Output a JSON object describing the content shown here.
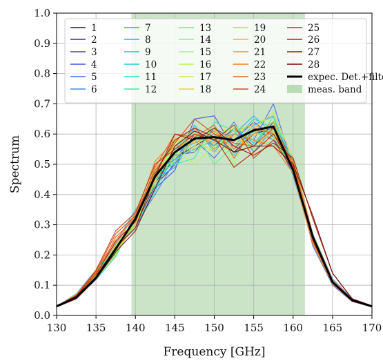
{
  "chart_data": {
    "type": "line",
    "xlabel": "Frequency [GHz]",
    "ylabel": "Spectrum",
    "xlim": [
      130,
      170
    ],
    "ylim": [
      0.0,
      1.0
    ],
    "xticks": [
      "130",
      "135",
      "140",
      "145",
      "150",
      "155",
      "160",
      "165",
      "170"
    ],
    "yticks": [
      "0.0",
      "0.1",
      "0.2",
      "0.3",
      "0.4",
      "0.5",
      "0.6",
      "0.7",
      "0.8",
      "0.9",
      "1.0"
    ],
    "grid": true,
    "legend_position": "top-left",
    "band": {
      "name": "meas. band",
      "x0": 139.5,
      "x1": 161.5,
      "color": "#b9dbb5"
    },
    "x": [
      130.0,
      132.5,
      135.0,
      137.5,
      140.0,
      142.5,
      145.0,
      147.5,
      150.0,
      152.5,
      155.0,
      157.5,
      160.0,
      162.5,
      165.0,
      167.5,
      170.0
    ],
    "series": [
      {
        "name": "1",
        "color": "#30123b",
        "values": [
          0.03,
          0.065,
          0.13,
          0.21,
          0.31,
          0.44,
          0.52,
          0.56,
          0.6,
          0.54,
          0.6,
          0.62,
          0.48,
          0.25,
          0.11,
          0.05,
          0.03
        ]
      },
      {
        "name": "2",
        "color": "#3c2b8a",
        "values": [
          0.032,
          0.06,
          0.125,
          0.225,
          0.3,
          0.43,
          0.5,
          0.6,
          0.56,
          0.62,
          0.56,
          0.64,
          0.5,
          0.26,
          0.115,
          0.052,
          0.03
        ]
      },
      {
        "name": "3",
        "color": "#4444b8",
        "values": [
          0.028,
          0.07,
          0.14,
          0.215,
          0.32,
          0.45,
          0.53,
          0.54,
          0.62,
          0.58,
          0.64,
          0.59,
          0.47,
          0.24,
          0.105,
          0.048,
          0.028
        ]
      },
      {
        "name": "4",
        "color": "#4455d8",
        "values": [
          0.03,
          0.058,
          0.12,
          0.22,
          0.29,
          0.42,
          0.48,
          0.65,
          0.66,
          0.55,
          0.62,
          0.58,
          0.52,
          0.27,
          0.12,
          0.055,
          0.032
        ]
      },
      {
        "name": "5",
        "color": "#466aef",
        "values": [
          0.031,
          0.066,
          0.135,
          0.205,
          0.33,
          0.46,
          0.55,
          0.58,
          0.52,
          0.6,
          0.58,
          0.7,
          0.49,
          0.23,
          0.1,
          0.046,
          0.029
        ]
      },
      {
        "name": "6",
        "color": "#4680f7",
        "values": [
          0.029,
          0.072,
          0.15,
          0.23,
          0.3,
          0.4,
          0.51,
          0.62,
          0.56,
          0.64,
          0.54,
          0.62,
          0.5,
          0.26,
          0.112,
          0.05,
          0.03
        ]
      },
      {
        "name": "7",
        "color": "#3b97fc",
        "values": [
          0.033,
          0.062,
          0.128,
          0.2,
          0.34,
          0.45,
          0.49,
          0.59,
          0.61,
          0.56,
          0.63,
          0.66,
          0.46,
          0.245,
          0.108,
          0.049,
          0.031
        ]
      },
      {
        "name": "8",
        "color": "#2bacf5",
        "values": [
          0.03,
          0.068,
          0.145,
          0.24,
          0.35,
          0.43,
          0.52,
          0.55,
          0.58,
          0.6,
          0.66,
          0.6,
          0.48,
          0.255,
          0.11,
          0.051,
          0.03
        ]
      },
      {
        "name": "9",
        "color": "#1ec0e7",
        "values": [
          0.028,
          0.064,
          0.132,
          0.215,
          0.31,
          0.47,
          0.5,
          0.63,
          0.54,
          0.62,
          0.57,
          0.64,
          0.51,
          0.265,
          0.118,
          0.053,
          0.029
        ]
      },
      {
        "name": "10",
        "color": "#1ad0d4",
        "values": [
          0.031,
          0.059,
          0.118,
          0.195,
          0.32,
          0.44,
          0.54,
          0.57,
          0.6,
          0.53,
          0.61,
          0.58,
          0.49,
          0.25,
          0.109,
          0.047,
          0.03
        ]
      },
      {
        "name": "11",
        "color": "#25dfbd",
        "values": [
          0.03,
          0.067,
          0.138,
          0.225,
          0.3,
          0.41,
          0.56,
          0.6,
          0.56,
          0.58,
          0.65,
          0.62,
          0.47,
          0.24,
          0.106,
          0.05,
          0.031
        ]
      },
      {
        "name": "12",
        "color": "#3ceca4",
        "values": [
          0.032,
          0.061,
          0.126,
          0.205,
          0.33,
          0.47,
          0.5,
          0.52,
          0.64,
          0.61,
          0.55,
          0.66,
          0.5,
          0.27,
          0.117,
          0.052,
          0.029
        ]
      },
      {
        "name": "13",
        "color": "#5cf58b",
        "values": [
          0.029,
          0.07,
          0.142,
          0.23,
          0.34,
          0.43,
          0.53,
          0.61,
          0.5,
          0.56,
          0.6,
          0.61,
          0.48,
          0.25,
          0.111,
          0.049,
          0.03
        ]
      },
      {
        "name": "14",
        "color": "#7ffb73",
        "values": [
          0.03,
          0.063,
          0.128,
          0.198,
          0.31,
          0.45,
          0.58,
          0.54,
          0.59,
          0.63,
          0.58,
          0.57,
          0.51,
          0.262,
          0.114,
          0.051,
          0.031
        ]
      },
      {
        "name": "15",
        "color": "#9efd5e",
        "values": [
          0.031,
          0.066,
          0.134,
          0.212,
          0.3,
          0.48,
          0.51,
          0.56,
          0.62,
          0.5,
          0.64,
          0.65,
          0.47,
          0.238,
          0.104,
          0.048,
          0.03
        ]
      },
      {
        "name": "16",
        "color": "#bbf64d",
        "values": [
          0.028,
          0.069,
          0.146,
          0.228,
          0.32,
          0.46,
          0.55,
          0.5,
          0.56,
          0.6,
          0.55,
          0.63,
          0.5,
          0.258,
          0.113,
          0.05,
          0.029
        ]
      },
      {
        "name": "17",
        "color": "#d4e840",
        "values": [
          0.03,
          0.06,
          0.122,
          0.202,
          0.33,
          0.44,
          0.57,
          0.61,
          0.58,
          0.62,
          0.6,
          0.59,
          0.49,
          0.248,
          0.109,
          0.049,
          0.03
        ]
      },
      {
        "name": "18",
        "color": "#e7d63b",
        "values": [
          0.032,
          0.065,
          0.13,
          0.218,
          0.31,
          0.49,
          0.52,
          0.58,
          0.54,
          0.56,
          0.62,
          0.67,
          0.52,
          0.268,
          0.116,
          0.052,
          0.031
        ]
      },
      {
        "name": "19",
        "color": "#f5c13a",
        "values": [
          0.029,
          0.067,
          0.136,
          0.208,
          0.3,
          0.45,
          0.59,
          0.55,
          0.6,
          0.59,
          0.56,
          0.61,
          0.48,
          0.244,
          0.107,
          0.048,
          0.029
        ]
      },
      {
        "name": "20",
        "color": "#fcaa33",
        "values": [
          0.031,
          0.062,
          0.124,
          0.22,
          0.32,
          0.47,
          0.54,
          0.6,
          0.57,
          0.61,
          0.63,
          0.6,
          0.5,
          0.256,
          0.112,
          0.05,
          0.03
        ]
      },
      {
        "name": "21",
        "color": "#fd912a",
        "values": [
          0.03,
          0.064,
          0.14,
          0.235,
          0.34,
          0.5,
          0.56,
          0.57,
          0.61,
          0.55,
          0.6,
          0.64,
          0.49,
          0.252,
          0.11,
          0.051,
          0.031
        ]
      },
      {
        "name": "22",
        "color": "#f77822",
        "values": [
          0.029,
          0.068,
          0.148,
          0.25,
          0.33,
          0.51,
          0.58,
          0.62,
          0.55,
          0.6,
          0.58,
          0.56,
          0.47,
          0.236,
          0.103,
          0.047,
          0.029
        ]
      },
      {
        "name": "23",
        "color": "#ec6019",
        "values": [
          0.031,
          0.061,
          0.128,
          0.26,
          0.32,
          0.49,
          0.6,
          0.59,
          0.63,
          0.52,
          0.62,
          0.6,
          0.51,
          0.264,
          0.115,
          0.052,
          0.03
        ]
      },
      {
        "name": "24",
        "color": "#dc4a12",
        "values": [
          0.03,
          0.066,
          0.144,
          0.27,
          0.33,
          0.48,
          0.57,
          0.65,
          0.6,
          0.57,
          0.56,
          0.62,
          0.5,
          0.25,
          0.11,
          0.05,
          0.031
        ]
      },
      {
        "name": "25",
        "color": "#c8380c",
        "values": [
          0.029,
          0.063,
          0.15,
          0.28,
          0.34,
          0.5,
          0.55,
          0.6,
          0.58,
          0.63,
          0.52,
          0.58,
          0.48,
          0.246,
          0.108,
          0.049,
          0.029
        ]
      },
      {
        "name": "26",
        "color": "#b12807",
        "values": [
          0.031,
          0.065,
          0.136,
          0.245,
          0.31,
          0.47,
          0.58,
          0.62,
          0.59,
          0.49,
          0.54,
          0.6,
          0.49,
          0.254,
          0.112,
          0.051,
          0.03
        ]
      },
      {
        "name": "27",
        "color": "#971a04",
        "values": [
          0.03,
          0.06,
          0.126,
          0.225,
          0.29,
          0.46,
          0.6,
          0.58,
          0.62,
          0.56,
          0.53,
          0.57,
          0.52,
          0.32,
          0.14,
          0.055,
          0.032
        ]
      },
      {
        "name": "28",
        "color": "#7a0403",
        "values": [
          0.028,
          0.055,
          0.12,
          0.21,
          0.28,
          0.42,
          0.56,
          0.61,
          0.58,
          0.54,
          0.56,
          0.56,
          0.5,
          0.33,
          0.14,
          0.055,
          0.031
        ]
      },
      {
        "name": "expec. Det.+filters",
        "color": "#000000",
        "values": [
          0.03,
          0.06,
          0.125,
          0.22,
          0.32,
          0.46,
          0.54,
          0.585,
          0.59,
          0.58,
          0.612,
          0.625,
          0.48,
          0.26,
          0.11,
          0.05,
          0.03
        ]
      }
    ]
  }
}
